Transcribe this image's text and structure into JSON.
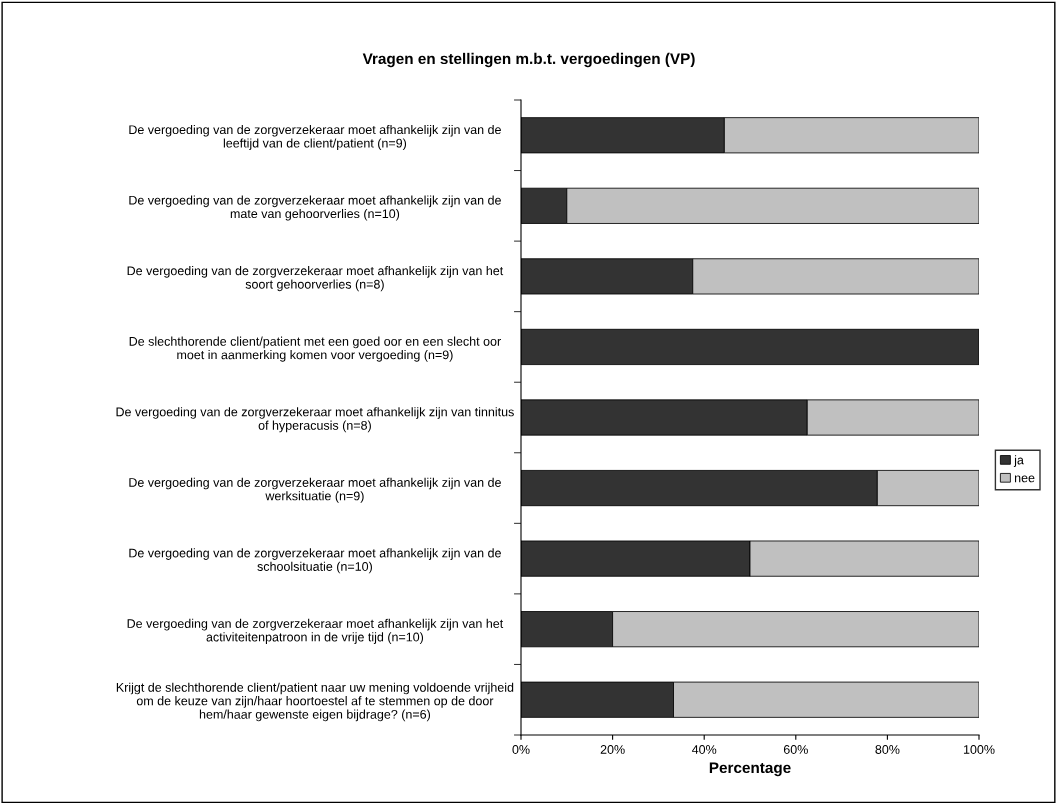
{
  "chart_data": {
    "type": "bar",
    "orientation": "horizontal",
    "stacked": true,
    "title": "Vragen en stellingen m.b.t. vergoedingen (VP)",
    "xlabel": "Percentage",
    "categories": [
      "De vergoeding van de zorgverzekeraar moet afhankelijk zijn van de\nleeftijd van de client/patient (n=9)",
      "De vergoeding van de zorgverzekeraar moet afhankelijk zijn van de\nmate van gehoorverlies (n=10)",
      "De vergoeding van de zorgverzekeraar moet afhankelijk zijn van het\nsoort gehoorverlies (n=8)",
      "De slechthorende client/patient met een goed oor en een slecht oor\nmoet in aanmerking komen voor vergoeding (n=9)",
      "De vergoeding van de zorgverzekeraar moet afhankelijk zijn van tinnitus\nof hyperacusis (n=8)",
      "De vergoeding van de zorgverzekeraar moet afhankelijk zijn van de\nwerksituatie (n=9)",
      "De vergoeding van de zorgverzekeraar moet afhankelijk zijn van de\nschoolsituatie (n=10)",
      "De vergoeding van de zorgverzekeraar moet afhankelijk zijn van het\nactiviteitenpatroon in de vrije tijd (n=10)",
      "Krijgt de slechthorende client/patient naar uw mening voldoende vrijheid\nom de keuze van zijn/haar hoortoestel af te stemmen op de door\nhem/haar gewenste eigen bijdrage? (n=6)"
    ],
    "series": [
      {
        "name": "ja",
        "color": "#333333",
        "values": [
          44.4,
          10,
          37.5,
          100,
          62.5,
          77.8,
          50,
          20,
          33.3
        ]
      },
      {
        "name": "nee",
        "color": "#c0c0c0",
        "values": [
          55.6,
          90,
          62.5,
          null,
          37.5,
          22.2,
          50,
          80,
          66.7
        ]
      }
    ],
    "xlim": [
      0,
      100
    ],
    "xticks": [
      {
        "value": 0,
        "label": "0%"
      },
      {
        "value": 20,
        "label": "20%"
      },
      {
        "value": 40,
        "label": "40%"
      },
      {
        "value": 60,
        "label": "60%"
      },
      {
        "value": 80,
        "label": "80%"
      },
      {
        "value": 100,
        "label": "100%"
      }
    ],
    "grid": false,
    "legend": "right"
  }
}
